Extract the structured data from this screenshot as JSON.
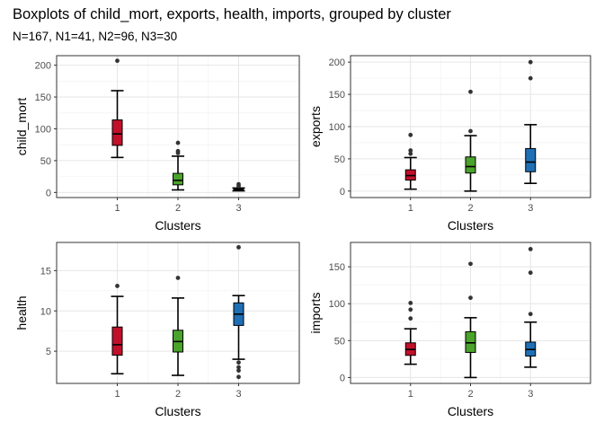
{
  "title": "Boxplots of child_mort, exports, health, imports, grouped by cluster",
  "subtitle": "N=167, N1=41, N2=96, N3=30",
  "chart_data": [
    {
      "type": "boxplot",
      "xlabel": "Clusters",
      "ylabel": "child_mort",
      "categories": [
        "1",
        "2",
        "3"
      ],
      "ylim": [
        -8,
        215
      ],
      "yticks": [
        0,
        50,
        100,
        150,
        200
      ],
      "colors": [
        "#c0102a",
        "#4aa32a",
        "#1f6fb5"
      ],
      "boxes": [
        {
          "category": "1",
          "min": 55,
          "q1": 74,
          "median": 92,
          "q3": 114,
          "max": 160,
          "outliers": [
            207
          ]
        },
        {
          "category": "2",
          "min": 4,
          "q1": 12,
          "median": 19,
          "q3": 30,
          "max": 57,
          "outliers": [
            62,
            65,
            78
          ]
        },
        {
          "category": "3",
          "min": 2.5,
          "q1": 3.5,
          "median": 4.5,
          "q3": 5.5,
          "max": 7,
          "outliers": [
            10,
            13
          ]
        }
      ]
    },
    {
      "type": "boxplot",
      "xlabel": "Clusters",
      "ylabel": "exports",
      "categories": [
        "1",
        "2",
        "3"
      ],
      "ylim": [
        -10,
        210
      ],
      "yticks": [
        0,
        50,
        100,
        150,
        200
      ],
      "colors": [
        "#c0102a",
        "#4aa32a",
        "#1f6fb5"
      ],
      "boxes": [
        {
          "category": "1",
          "min": 3,
          "q1": 17,
          "median": 24,
          "q3": 33,
          "max": 52,
          "outliers": [
            58,
            63,
            87
          ]
        },
        {
          "category": "2",
          "min": 0,
          "q1": 28,
          "median": 38,
          "q3": 53,
          "max": 86,
          "outliers": [
            93,
            154
          ]
        },
        {
          "category": "3",
          "min": 12,
          "q1": 30,
          "median": 45,
          "q3": 66,
          "max": 103,
          "outliers": [
            175,
            200
          ]
        }
      ]
    },
    {
      "type": "boxplot",
      "xlabel": "Clusters",
      "ylabel": "health",
      "categories": [
        "1",
        "2",
        "3"
      ],
      "ylim": [
        1,
        18.5
      ],
      "yticks": [
        5,
        10,
        15
      ],
      "colors": [
        "#c0102a",
        "#4aa32a",
        "#1f6fb5"
      ],
      "boxes": [
        {
          "category": "1",
          "min": 2.2,
          "q1": 4.5,
          "median": 5.8,
          "q3": 8.0,
          "max": 11.8,
          "outliers": [
            13.1
          ]
        },
        {
          "category": "2",
          "min": 2.0,
          "q1": 4.9,
          "median": 6.2,
          "q3": 7.6,
          "max": 11.6,
          "outliers": [
            14.1
          ]
        },
        {
          "category": "3",
          "min": 4.0,
          "q1": 8.2,
          "median": 9.6,
          "q3": 11.0,
          "max": 11.9,
          "outliers": [
            1.8,
            2.6,
            3.0,
            3.6,
            17.9
          ]
        }
      ]
    },
    {
      "type": "boxplot",
      "xlabel": "Clusters",
      "ylabel": "imports",
      "categories": [
        "1",
        "2",
        "3"
      ],
      "ylim": [
        -8,
        183
      ],
      "yticks": [
        0,
        50,
        100,
        150
      ],
      "colors": [
        "#c0102a",
        "#4aa32a",
        "#1f6fb5"
      ],
      "boxes": [
        {
          "category": "1",
          "min": 18,
          "q1": 30,
          "median": 38,
          "q3": 47,
          "max": 66,
          "outliers": [
            80,
            92,
            101
          ]
        },
        {
          "category": "2",
          "min": 0,
          "q1": 34,
          "median": 47,
          "q3": 62,
          "max": 81,
          "outliers": [
            108,
            154
          ]
        },
        {
          "category": "3",
          "min": 14,
          "q1": 29,
          "median": 38,
          "q3": 48,
          "max": 75,
          "outliers": [
            86,
            142,
            174
          ]
        }
      ]
    }
  ]
}
